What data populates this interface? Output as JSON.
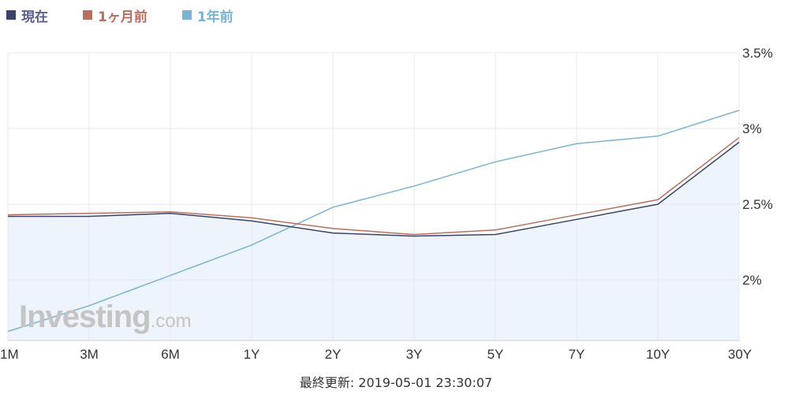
{
  "legend": [
    {
      "label": "現在",
      "color": "#3b4169",
      "text_color": "#5a6190"
    },
    {
      "label": "1ヶ月前",
      "color": "#b5705e",
      "text_color": "#b5705e"
    },
    {
      "label": "1年前",
      "color": "#7ab3d3",
      "text_color": "#7ab3d3"
    }
  ],
  "watermark": {
    "main": "Investing",
    "sub": ".com"
  },
  "footer": {
    "text": "最終更新: 2019-05-01 23:30:07"
  },
  "chart_data": {
    "type": "line",
    "categories": [
      "1M",
      "3M",
      "6M",
      "1Y",
      "2Y",
      "3Y",
      "5Y",
      "7Y",
      "10Y",
      "30Y"
    ],
    "y_ticks": [
      {
        "value": 2.0,
        "label": "2%"
      },
      {
        "value": 2.5,
        "label": "2.5%"
      },
      {
        "value": 3.0,
        "label": "3%"
      },
      {
        "value": 3.5,
        "label": "3.5%"
      }
    ],
    "ylim": [
      1.6,
      3.5
    ],
    "y_axis_side": "right",
    "grid": true,
    "legend_position": "top-left",
    "series": [
      {
        "name": "現在",
        "color": "#3b4169",
        "area_fill": "#eef4fb",
        "values": [
          2.42,
          2.42,
          2.44,
          2.39,
          2.31,
          2.29,
          2.3,
          2.4,
          2.5,
          2.91
        ]
      },
      {
        "name": "1ヶ月前",
        "color": "#b5705e",
        "values": [
          2.43,
          2.44,
          2.45,
          2.41,
          2.34,
          2.3,
          2.33,
          2.43,
          2.53,
          2.94
        ]
      },
      {
        "name": "1年前",
        "color": "#7ab3d3",
        "values": [
          1.66,
          1.83,
          2.03,
          2.23,
          2.48,
          2.62,
          2.78,
          2.9,
          2.95,
          3.12
        ]
      }
    ]
  }
}
